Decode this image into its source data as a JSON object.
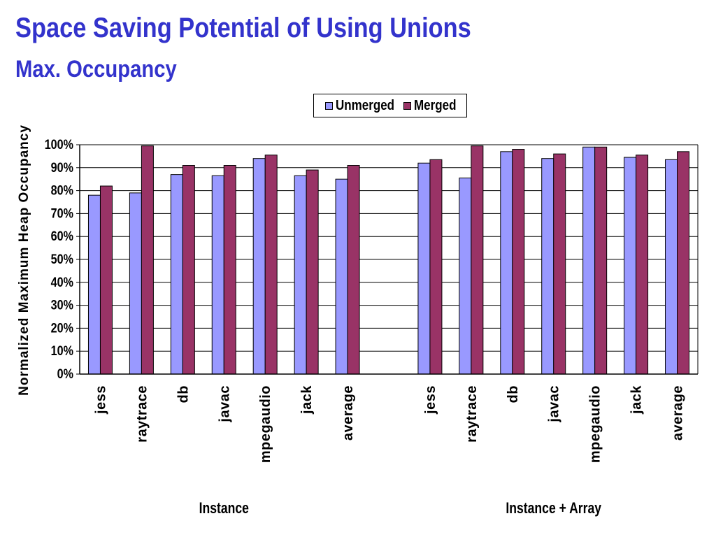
{
  "slide": {
    "title": "Space Saving Potential of Using Unions",
    "subtitle": "Max. Occupancy"
  },
  "colors": {
    "title": "#3333cc",
    "unmerged": "#9999ff",
    "merged": "#993366"
  },
  "chart_data": {
    "type": "bar",
    "ylabel": "Normalized Maximum Heap Occupancy",
    "ylim": [
      0,
      100
    ],
    "yticks": [
      "0%",
      "10%",
      "20%",
      "30%",
      "40%",
      "50%",
      "60%",
      "70%",
      "80%",
      "90%",
      "100%"
    ],
    "grid": true,
    "legend_position": "top",
    "groups": [
      {
        "label": "Instance",
        "categories": [
          "jess",
          "raytrace",
          "db",
          "javac",
          "mpegaudio",
          "jack",
          "average"
        ],
        "series": [
          {
            "name": "Unmerged",
            "values": [
              78,
              79,
              87,
              86.5,
              94,
              86.5,
              85
            ]
          },
          {
            "name": "Merged",
            "values": [
              82,
              99.5,
              91,
              91,
              95.5,
              89,
              91
            ]
          }
        ]
      },
      {
        "label": "Instance + Array",
        "categories": [
          "jess",
          "raytrace",
          "db",
          "javac",
          "mpegaudio",
          "jack",
          "average"
        ],
        "series": [
          {
            "name": "Unmerged",
            "values": [
              92,
              85.5,
              97,
              94,
              99,
              94.5,
              93.5
            ]
          },
          {
            "name": "Merged",
            "values": [
              93.5,
              99.5,
              98,
              96,
              99,
              95.5,
              97
            ]
          }
        ]
      }
    ]
  }
}
